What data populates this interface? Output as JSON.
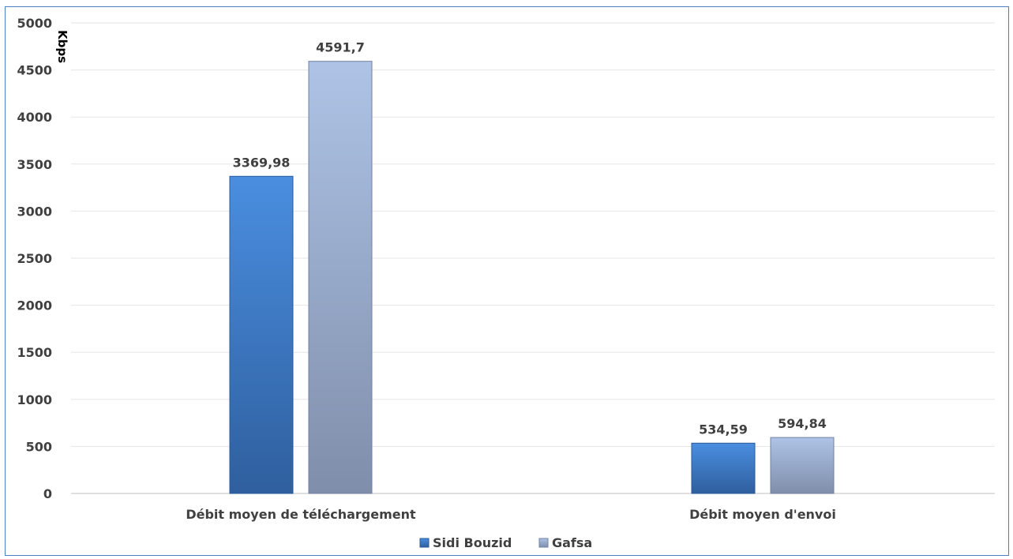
{
  "chart_data": {
    "type": "bar",
    "categories": [
      "Débit moyen de téléchargement",
      "Débit moyen d'envoi"
    ],
    "series": [
      {
        "name": "Sidi Bouzid",
        "values": [
          3369.98,
          534.59
        ],
        "labels": [
          "3369,98",
          "534,59"
        ],
        "color": "#3a78c8"
      },
      {
        "name": "Gafsa",
        "values": [
          4591.7,
          594.84
        ],
        "labels": [
          "4591,7",
          "594,84"
        ],
        "color": "#9aaed3"
      }
    ],
    "yticks": [
      "0",
      "500",
      "1000",
      "1500",
      "2000",
      "2500",
      "3000",
      "3500",
      "4000",
      "4500",
      "5000"
    ],
    "ylim": [
      0,
      5000
    ],
    "ylabel": "Kbps",
    "grid": true,
    "legend_position": "bottom"
  }
}
